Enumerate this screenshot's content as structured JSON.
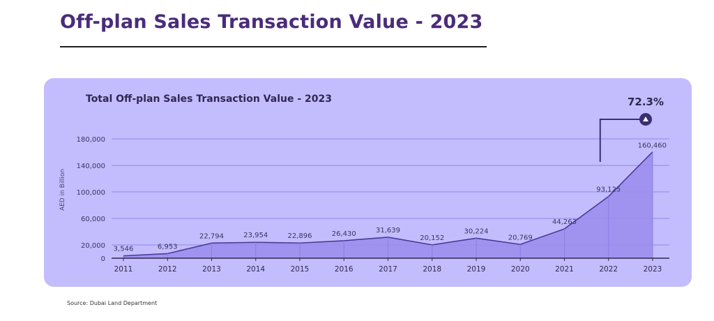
{
  "page": {
    "title": "Off-plan Sales Transaction Value - 2023",
    "source": "Source: Dubai Land Department"
  },
  "colors": {
    "title": "#4a2c7a",
    "panel": "#c3bdfd",
    "area_fill": "#9a8cec",
    "line": "#4a3a9a",
    "grid": "#8f86e6",
    "text": "#2f2850"
  },
  "chart_data": {
    "type": "area",
    "title": "Total Off-plan Sales Transaction Value - 2023",
    "ylabel": "AED in Billion",
    "xlabel": "",
    "categories": [
      "2011",
      "2012",
      "2013",
      "2014",
      "2015",
      "2016",
      "2017",
      "2018",
      "2019",
      "2020",
      "2021",
      "2022",
      "2023"
    ],
    "values": [
      3546,
      6953,
      22794,
      23954,
      22896,
      26430,
      31639,
      20152,
      30224,
      20769,
      44263,
      93125,
      160460
    ],
    "data_labels": [
      "3,546",
      "6,953",
      "22,794",
      "23,954",
      "22,896",
      "26,430",
      "31,639",
      "20,152",
      "30,224",
      "20,769",
      "44,263",
      "93,125",
      "160,460"
    ],
    "y_ticks": [
      0,
      20000,
      60000,
      100000,
      140000,
      180000
    ],
    "y_tick_labels": [
      "0",
      "20,000",
      "60,000",
      "100,000",
      "140,000",
      "180,000"
    ],
    "ylim": [
      0,
      180000
    ],
    "grid": true,
    "annotation": {
      "text": "72.3%",
      "icon": "up-arrow-icon",
      "from": "2022",
      "to": "2023"
    }
  }
}
